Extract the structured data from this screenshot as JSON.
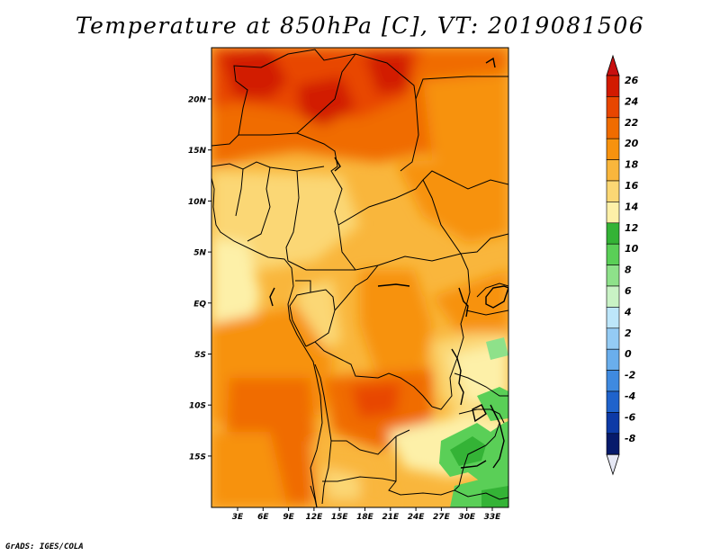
{
  "title": "Temperature at 850hPa [C], VT: 2019081506",
  "credit": "GrADS: IGES/COLA",
  "map": {
    "lon_labels": [
      "3E",
      "6E",
      "9E",
      "12E",
      "15E",
      "18E",
      "21E",
      "24E",
      "27E",
      "30E",
      "33E"
    ],
    "lat_labels": [
      "20N",
      "15N",
      "10N",
      "5N",
      "EQ",
      "5S",
      "10S",
      "15S"
    ]
  },
  "colorbar": {
    "labels": [
      "26",
      "24",
      "22",
      "20",
      "18",
      "16",
      "14",
      "12",
      "10",
      "8",
      "6",
      "4",
      "2",
      "0",
      "-2",
      "-4",
      "-6",
      "-8"
    ],
    "colors": [
      "#d21a00",
      "#e84600",
      "#f06c00",
      "#f7920e",
      "#f9b63c",
      "#fbd774",
      "#fdf0a8",
      "#34b336",
      "#5acf57",
      "#8ee18a",
      "#c9f2c5",
      "#bde6fa",
      "#94cbf4",
      "#6aaeec",
      "#3f8ae0",
      "#1f63cc",
      "#0d3aa6",
      "#061a6b"
    ],
    "top_arrow_color": "#c80f0f",
    "bottom_arrow_color": "#e6e8f5"
  }
}
